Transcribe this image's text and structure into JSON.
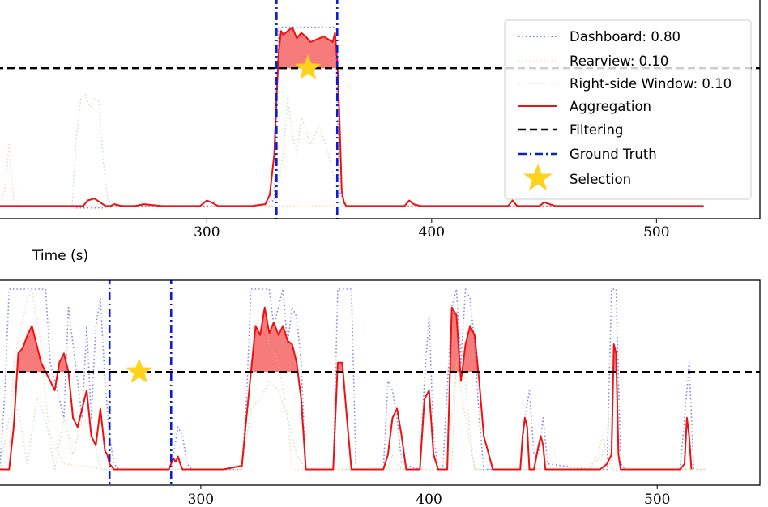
{
  "chart_data": [
    {
      "type": "line",
      "title": "",
      "xlabel": "Time (s)",
      "ylabel": "",
      "xlim": [
        208,
        546
      ],
      "ylim": [
        0,
        1
      ],
      "x_ticks": [
        300,
        400,
        500
      ],
      "grid": false,
      "legend": {
        "placement": "top-right",
        "entries": [
          {
            "label": "Dashboard: 0.80",
            "style": "dotted",
            "color": "#3a4bd6"
          },
          {
            "label": "Rearview: 0.10",
            "style": "dotted",
            "color": "#f2b97a"
          },
          {
            "label": "Right-side Window: 0.10",
            "style": "dotted",
            "color": "#9ccf9c"
          },
          {
            "label": "Aggregation",
            "style": "solid",
            "color": "#ee1111"
          },
          {
            "label": "Filtering",
            "style": "dashed",
            "color": "#000000"
          },
          {
            "label": "Ground Truth",
            "style": "dashdot",
            "color": "#0a1fd0"
          },
          {
            "label": "Selection",
            "style": "star",
            "color": "#ffd21e"
          }
        ]
      },
      "filtering_threshold": 0.76,
      "ground_truth": [
        331,
        358
      ],
      "selection": {
        "x": 345,
        "y": 0.76
      },
      "series": [
        {
          "name": "Aggregation",
          "color": "#ee1111",
          "style": "solid",
          "x": [
            208,
            230,
            245,
            247,
            250,
            255,
            257,
            259,
            262,
            268,
            272,
            280,
            290,
            297,
            300,
            302,
            305,
            315,
            320,
            326,
            328,
            330,
            331,
            332,
            333,
            334,
            338,
            340,
            342,
            344,
            346,
            350,
            352,
            356,
            357,
            358,
            359,
            360,
            361,
            362,
            380,
            388,
            390,
            392,
            395,
            400,
            420,
            430,
            434,
            436,
            438,
            440,
            448,
            450,
            455,
            460,
            480,
            500,
            521
          ],
          "y": [
            0.02,
            0.02,
            0.02,
            0.05,
            0.06,
            0.02,
            0.02,
            0.03,
            0.02,
            0.02,
            0.03,
            0.02,
            0.02,
            0.02,
            0.05,
            0.04,
            0.02,
            0.02,
            0.02,
            0.03,
            0.08,
            0.3,
            0.6,
            0.85,
            0.96,
            0.94,
            0.98,
            0.92,
            0.95,
            0.93,
            0.9,
            0.92,
            0.93,
            0.9,
            0.95,
            0.8,
            0.5,
            0.1,
            0.04,
            0.02,
            0.02,
            0.02,
            0.05,
            0.03,
            0.02,
            0.02,
            0.02,
            0.02,
            0.02,
            0.05,
            0.02,
            0.02,
            0.02,
            0.04,
            0.02,
            0.02,
            0.02,
            0.02,
            0.02
          ]
        },
        {
          "name": "Dashboard",
          "color": "#3a4bd6",
          "style": "dotted",
          "x": [
            208,
            240,
            242,
            254,
            256,
            290,
            320,
            330,
            331,
            332,
            357,
            358,
            359,
            362,
            521
          ],
          "y": [
            0.02,
            0.02,
            0.01,
            0.01,
            0.02,
            0.02,
            0.02,
            0.05,
            0.5,
            0.98,
            0.98,
            0.6,
            0.1,
            0.02,
            0.02
          ]
        },
        {
          "name": "Rearview",
          "color": "#f2b97a",
          "style": "dotted",
          "x": [
            208,
            210,
            212,
            214,
            216,
            218,
            222,
            300,
            521
          ],
          "y": [
            0.02,
            0.1,
            0.35,
            0.05,
            0.02,
            0.02,
            0.02,
            0.02,
            0.02
          ]
        },
        {
          "name": "Right-side Window",
          "color": "#9ccf9c",
          "style": "dotted",
          "x": [
            208,
            240,
            242,
            244,
            246,
            248,
            250,
            252,
            254,
            256,
            260,
            330,
            334,
            336,
            338,
            340,
            342,
            346,
            350,
            354,
            356,
            358,
            362,
            400,
            521
          ],
          "y": [
            0.02,
            0.02,
            0.4,
            0.6,
            0.62,
            0.55,
            0.6,
            0.58,
            0.25,
            0.05,
            0.02,
            0.02,
            0.3,
            0.6,
            0.4,
            0.3,
            0.5,
            0.35,
            0.45,
            0.3,
            0.2,
            0.1,
            0.02,
            0.02,
            0.02
          ]
        }
      ]
    },
    {
      "type": "line",
      "title": "",
      "xlabel": "",
      "ylabel": "",
      "xlim": [
        212,
        545
      ],
      "ylim": [
        0,
        1
      ],
      "x_ticks": [
        300,
        400,
        500
      ],
      "grid": false,
      "filtering_threshold": 0.55,
      "ground_truth": [
        260,
        287
      ],
      "selection": {
        "x": 273,
        "y": 0.55
      },
      "series": [
        {
          "name": "Aggregation",
          "color": "#ee1111",
          "style": "solid",
          "x": [
            212,
            216,
            218,
            220,
            222,
            224,
            226,
            228,
            230,
            232,
            234,
            236,
            238,
            240,
            242,
            244,
            246,
            248,
            250,
            252,
            254,
            256,
            258,
            259,
            260,
            262,
            264,
            286,
            287,
            288,
            289,
            290,
            291,
            292,
            293,
            294,
            300,
            310,
            318,
            320,
            322,
            324,
            326,
            328,
            330,
            332,
            334,
            336,
            338,
            340,
            342,
            344,
            346,
            358,
            360,
            362,
            364,
            366,
            368,
            370,
            380,
            382,
            384,
            386,
            388,
            390,
            396,
            398,
            400,
            402,
            404,
            406,
            408,
            410,
            412,
            414,
            416,
            418,
            420,
            422,
            424,
            428,
            440,
            441,
            442,
            443,
            444,
            446,
            448,
            449,
            450,
            451,
            452,
            454,
            458,
            470,
            475,
            478,
            480,
            481,
            482,
            483,
            484,
            486,
            488,
            500,
            510,
            512,
            513,
            514,
            515
          ],
          "y": [
            0.02,
            0.02,
            0.25,
            0.65,
            0.68,
            0.75,
            0.8,
            0.7,
            0.6,
            0.55,
            0.5,
            0.45,
            0.6,
            0.65,
            0.55,
            0.3,
            0.25,
            0.35,
            0.45,
            0.2,
            0.15,
            0.35,
            0.12,
            0.1,
            0.05,
            0.02,
            0.02,
            0.02,
            0.05,
            0.08,
            0.06,
            0.09,
            0.05,
            0.02,
            0.02,
            0.02,
            0.02,
            0.02,
            0.04,
            0.3,
            0.55,
            0.8,
            0.75,
            0.9,
            0.76,
            0.82,
            0.75,
            0.8,
            0.72,
            0.7,
            0.6,
            0.4,
            0.02,
            0.02,
            0.6,
            0.6,
            0.3,
            0.02,
            0.02,
            0.02,
            0.02,
            0.1,
            0.3,
            0.35,
            0.2,
            0.02,
            0.02,
            0.4,
            0.45,
            0.1,
            0.02,
            0.02,
            0.02,
            0.9,
            0.86,
            0.5,
            0.7,
            0.8,
            0.75,
            0.5,
            0.2,
            0.02,
            0.02,
            0.2,
            0.3,
            0.25,
            0.02,
            0.02,
            0.15,
            0.2,
            0.15,
            0.02,
            0.02,
            0.02,
            0.02,
            0.02,
            0.02,
            0.05,
            0.1,
            0.7,
            0.65,
            0.1,
            0.02,
            0.02,
            0.02,
            0.02,
            0.02,
            0.05,
            0.3,
            0.2,
            0.02
          ]
        },
        {
          "name": "Dashboard",
          "color": "#3a4bd6",
          "style": "dotted",
          "x": [
            212,
            214,
            216,
            232,
            234,
            240,
            242,
            246,
            248,
            250,
            252,
            254,
            256,
            258,
            260,
            262,
            264,
            286,
            288,
            290,
            292,
            294,
            296,
            318,
            320,
            322,
            330,
            332,
            336,
            338,
            340,
            342,
            344,
            346,
            358,
            360,
            366,
            368,
            380,
            382,
            384,
            386,
            388,
            396,
            398,
            400,
            402,
            404,
            406,
            410,
            412,
            414,
            416,
            418,
            420,
            422,
            424,
            440,
            442,
            444,
            446,
            448,
            450,
            452,
            470,
            478,
            480,
            482,
            484,
            486,
            510,
            512,
            514,
            516
          ],
          "y": [
            0.05,
            0.4,
            1.0,
            1.0,
            0.6,
            0.3,
            0.9,
            0.5,
            0.3,
            0.8,
            0.3,
            0.8,
            0.95,
            0.5,
            0.2,
            0.05,
            0.02,
            0.02,
            0.1,
            0.25,
            0.2,
            0.05,
            0.02,
            0.02,
            0.4,
            1.0,
            1.0,
            0.8,
            1.0,
            0.7,
            0.9,
            0.85,
            0.6,
            0.02,
            0.02,
            1.0,
            1.0,
            0.02,
            0.02,
            0.5,
            0.45,
            0.3,
            0.05,
            0.02,
            0.5,
            0.85,
            0.2,
            0.02,
            0.02,
            0.9,
            1.0,
            0.6,
            1.0,
            0.95,
            0.7,
            0.3,
            0.02,
            0.02,
            0.3,
            0.45,
            0.1,
            0.1,
            0.3,
            0.05,
            0.02,
            0.02,
            1.0,
            1.0,
            0.05,
            0.02,
            0.02,
            0.3,
            0.6,
            0.02
          ]
        },
        {
          "name": "Rearview",
          "color": "#f2b97a",
          "style": "dotted",
          "x": [
            212,
            216,
            218,
            224,
            226,
            230,
            232,
            234,
            240,
            260,
            262,
            290,
            318,
            320,
            324,
            328,
            330,
            334,
            338,
            340,
            400,
            408,
            410,
            412,
            416,
            420,
            470,
            474,
            476,
            478,
            480,
            482,
            484,
            490,
            521
          ],
          "y": [
            0.02,
            0.1,
            0.6,
            0.95,
            1.0,
            0.7,
            0.4,
            0.2,
            0.05,
            0.02,
            0.02,
            0.02,
            0.02,
            0.3,
            0.8,
            0.9,
            0.7,
            0.6,
            0.3,
            0.02,
            0.02,
            0.02,
            0.3,
            0.6,
            0.3,
            0.02,
            0.02,
            0.1,
            0.2,
            0.1,
            0.02,
            0.02,
            0.02,
            0.02,
            0.02
          ]
        },
        {
          "name": "Right-side Window",
          "color": "#9ccf9c",
          "style": "dotted",
          "x": [
            212,
            216,
            220,
            224,
            228,
            232,
            236,
            240,
            244,
            248,
            252,
            256,
            262,
            318,
            322,
            326,
            330,
            334,
            338,
            342,
            346,
            382,
            384,
            386,
            388,
            410,
            412,
            414,
            416,
            418,
            420,
            440,
            448,
            450,
            452,
            470,
            476,
            478,
            480,
            482,
            486,
            521
          ],
          "y": [
            0.02,
            0.3,
            0.35,
            0.05,
            0.4,
            0.3,
            0.02,
            0.3,
            0.1,
            0.3,
            0.25,
            0.02,
            0.02,
            0.02,
            0.35,
            0.4,
            0.5,
            0.45,
            0.3,
            0.1,
            0.02,
            0.02,
            0.1,
            0.05,
            0.02,
            0.02,
            0.6,
            0.7,
            0.5,
            0.2,
            0.02,
            0.02,
            0.02,
            0.1,
            0.02,
            0.02,
            0.1,
            0.2,
            0.05,
            0.02,
            0.02,
            0.02
          ]
        }
      ]
    }
  ]
}
